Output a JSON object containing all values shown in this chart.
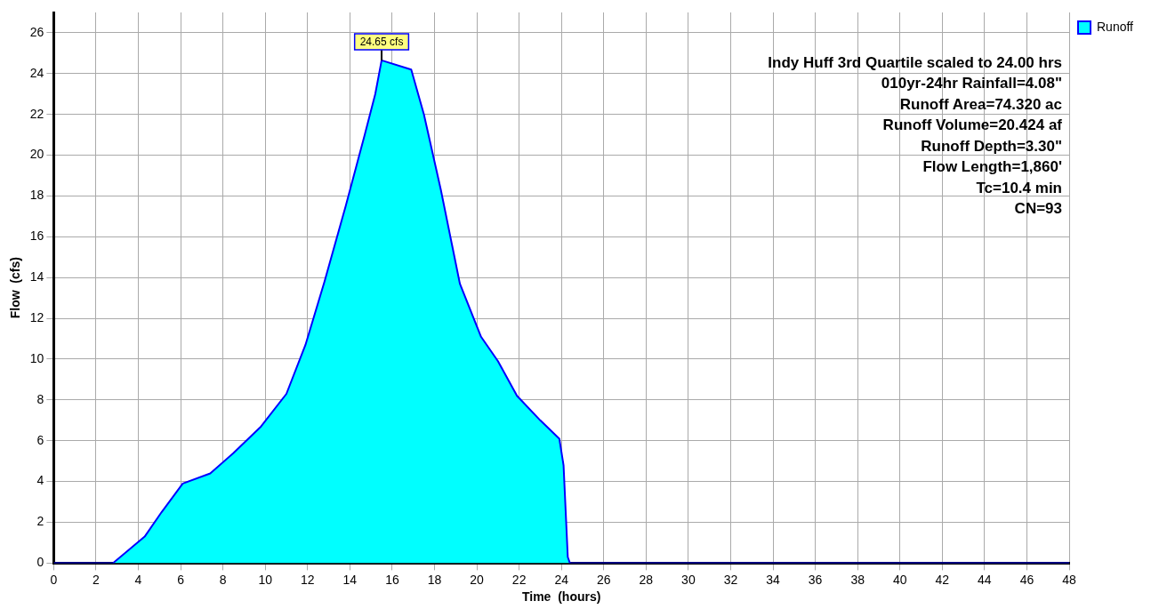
{
  "chart_data": {
    "type": "area",
    "xlabel": "Time  (hours)",
    "ylabel": "Flow  (cfs)",
    "x": [
      0,
      2.8,
      4.3,
      5.1,
      6.1,
      7.4,
      8.5,
      9.8,
      11,
      11.9,
      12.8,
      13.8,
      14.7,
      15.2,
      15.5,
      16.9,
      17.5,
      18.3,
      19.2,
      20.2,
      21,
      21.9,
      23,
      23.9,
      24.1,
      24.3,
      24.4,
      48
    ],
    "series": [
      {
        "name": "Runoff",
        "color": "#00ffff",
        "values": [
          0,
          0,
          1.3,
          2.5,
          3.9,
          4.4,
          5.4,
          6.7,
          8.3,
          10.7,
          13.8,
          17.5,
          21,
          23,
          24.65,
          24.2,
          22,
          18.3,
          13.7,
          11.1,
          9.9,
          8.2,
          7,
          6.1,
          4.8,
          0.3,
          0,
          0
        ]
      }
    ],
    "xlim": [
      0,
      48
    ],
    "xticks": [
      0,
      2,
      4,
      6,
      8,
      10,
      12,
      14,
      16,
      18,
      20,
      22,
      24,
      26,
      28,
      30,
      32,
      34,
      36,
      38,
      40,
      42,
      44,
      46,
      48
    ],
    "ylim": [
      0,
      27
    ],
    "yticks": [
      0,
      2,
      4,
      6,
      8,
      10,
      12,
      14,
      16,
      18,
      20,
      22,
      24,
      26
    ],
    "grid": true,
    "legend": "top right",
    "marker": "none",
    "annotations": [
      {
        "text": "24.65 cfs",
        "x": 15.5,
        "y": 24.65
      },
      "Indy Huff 3rd Quartile scaled to 24.00 hrs",
      "010yr-24hr Rainfall=4.08\"",
      "Runoff Area=74.320 ac",
      "Runoff Volume=20.424 af",
      "Runoff Depth=3.30\"",
      "Flow Length=1,860'",
      "Tc=10.4 min",
      "CN=93"
    ]
  }
}
